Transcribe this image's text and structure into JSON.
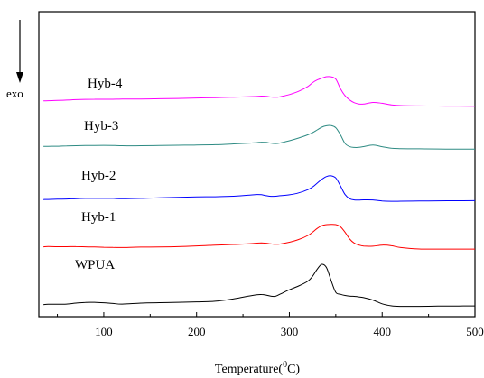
{
  "chart_data": {
    "type": "line",
    "title": "",
    "xlabel": "Temperature(",
    "xlabel_sup": "0",
    "xlabel_tail": "C)",
    "ylabel": "exo",
    "ylabel_arrow": "down",
    "xlim": [
      30,
      500
    ],
    "xticks": [
      100,
      200,
      300,
      400,
      500
    ],
    "yticks": [],
    "grid": false,
    "legend": "none",
    "series": [
      {
        "label": "WPUA",
        "color": "#000000",
        "x": [
          35,
          40,
          50,
          60,
          70,
          80,
          90,
          100,
          110,
          120,
          140,
          160,
          180,
          200,
          220,
          240,
          255,
          265,
          270,
          275,
          280,
          285,
          290,
          300,
          310,
          320,
          325,
          330,
          335,
          340,
          345,
          350,
          355,
          360,
          365,
          370,
          375,
          380,
          390,
          400,
          410,
          420,
          440,
          460,
          480,
          500
        ],
        "y": [
          0.345,
          0.337,
          0.338,
          0.335,
          0.317,
          0.303,
          0.302,
          0.31,
          0.324,
          0.335,
          0.317,
          0.308,
          0.301,
          0.294,
          0.282,
          0.238,
          0.19,
          0.162,
          0.158,
          0.168,
          0.188,
          0.19,
          0.152,
          0.07,
          0.0,
          -0.09,
          -0.18,
          -0.31,
          -0.4,
          -0.338,
          -0.1,
          0.118,
          0.154,
          0.175,
          0.187,
          0.192,
          0.201,
          0.215,
          0.26,
          0.33,
          0.367,
          0.377,
          0.376,
          0.372,
          0.37,
          0.368
        ]
      },
      {
        "label": "Hyb-1",
        "color": "#ff0000",
        "x": [
          35,
          40,
          50,
          60,
          70,
          80,
          90,
          100,
          110,
          120,
          140,
          160,
          180,
          200,
          220,
          240,
          255,
          265,
          270,
          275,
          280,
          285,
          290,
          300,
          310,
          320,
          325,
          330,
          335,
          340,
          345,
          350,
          355,
          360,
          365,
          370,
          375,
          380,
          390,
          400,
          410,
          420,
          440,
          460,
          480,
          500
        ],
        "y": [
          0.21,
          0.205,
          0.208,
          0.208,
          0.206,
          0.21,
          0.214,
          0.218,
          0.221,
          0.223,
          0.215,
          0.213,
          0.206,
          0.194,
          0.179,
          0.166,
          0.155,
          0.141,
          0.139,
          0.144,
          0.155,
          0.163,
          0.158,
          0.125,
          0.075,
          0.0,
          -0.06,
          -0.13,
          -0.18,
          -0.2,
          -0.205,
          -0.2,
          -0.16,
          -0.06,
          0.066,
          0.143,
          0.176,
          0.196,
          0.198,
          0.178,
          0.19,
          0.223,
          0.25,
          0.252,
          0.252,
          0.252
        ]
      },
      {
        "label": "Hyb-2",
        "color": "#0000ff",
        "x": [
          35,
          40,
          50,
          60,
          70,
          80,
          90,
          100,
          110,
          120,
          140,
          160,
          180,
          200,
          220,
          240,
          255,
          265,
          270,
          275,
          280,
          285,
          290,
          300,
          310,
          320,
          325,
          330,
          335,
          340,
          345,
          350,
          355,
          360,
          365,
          370,
          375,
          380,
          390,
          400,
          410,
          420,
          440,
          460,
          480,
          500
        ],
        "y": [
          0.103,
          0.101,
          0.097,
          0.093,
          0.086,
          0.081,
          0.081,
          0.082,
          0.082,
          0.088,
          0.082,
          0.071,
          0.061,
          0.054,
          0.051,
          0.041,
          0.024,
          0.01,
          0.014,
          0.032,
          0.043,
          0.041,
          0.032,
          0.015,
          -0.02,
          -0.08,
          -0.13,
          -0.2,
          -0.27,
          -0.322,
          -0.335,
          -0.295,
          -0.15,
          0.01,
          0.088,
          0.11,
          0.112,
          0.108,
          0.11,
          0.128,
          0.135,
          0.134,
          0.13,
          0.127,
          0.125,
          0.123
        ]
      },
      {
        "label": "Hyb-3",
        "color": "#2e8b83",
        "x": [
          35,
          40,
          50,
          60,
          70,
          80,
          90,
          100,
          110,
          120,
          140,
          160,
          180,
          200,
          220,
          240,
          255,
          265,
          270,
          275,
          280,
          285,
          290,
          300,
          310,
          320,
          325,
          330,
          335,
          340,
          345,
          350,
          355,
          360,
          365,
          370,
          375,
          380,
          390,
          400,
          410,
          420,
          440,
          460,
          480,
          500
        ],
        "y": [
          -0.046,
          -0.046,
          -0.049,
          -0.054,
          -0.058,
          -0.063,
          -0.064,
          -0.065,
          -0.064,
          -0.058,
          -0.058,
          -0.062,
          -0.066,
          -0.071,
          -0.077,
          -0.092,
          -0.105,
          -0.115,
          -0.123,
          -0.12,
          -0.106,
          -0.098,
          -0.108,
          -0.15,
          -0.2,
          -0.26,
          -0.3,
          -0.35,
          -0.4,
          -0.426,
          -0.43,
          -0.39,
          -0.26,
          -0.1,
          -0.04,
          -0.027,
          -0.028,
          -0.042,
          -0.07,
          -0.04,
          -0.012,
          -0.004,
          -0.001,
          0.002,
          0.003,
          0.004
        ]
      },
      {
        "label": "Hyb-4",
        "color": "#ff00ff",
        "x": [
          35,
          40,
          50,
          60,
          70,
          80,
          90,
          100,
          110,
          120,
          140,
          160,
          180,
          200,
          220,
          240,
          255,
          265,
          270,
          275,
          280,
          285,
          290,
          300,
          310,
          320,
          325,
          330,
          335,
          340,
          345,
          350,
          355,
          360,
          365,
          370,
          375,
          380,
          390,
          400,
          410,
          420,
          440,
          460,
          480,
          500
        ],
        "y": [
          -0.155,
          -0.156,
          -0.162,
          -0.168,
          -0.176,
          -0.182,
          -0.184,
          -0.184,
          -0.184,
          -0.188,
          -0.188,
          -0.193,
          -0.199,
          -0.206,
          -0.214,
          -0.222,
          -0.228,
          -0.235,
          -0.241,
          -0.236,
          -0.225,
          -0.22,
          -0.23,
          -0.27,
          -0.33,
          -0.42,
          -0.49,
          -0.54,
          -0.573,
          -0.6,
          -0.598,
          -0.555,
          -0.38,
          -0.25,
          -0.17,
          -0.12,
          -0.096,
          -0.095,
          -0.125,
          -0.11,
          -0.08,
          -0.067,
          -0.06,
          -0.058,
          -0.056,
          -0.055
        ]
      }
    ],
    "curve_labels": [
      {
        "text": "WPUA",
        "series": 0
      },
      {
        "text": "Hyb-1",
        "series": 1
      },
      {
        "text": "Hyb-2",
        "series": 2
      },
      {
        "text": "Hyb-3",
        "series": 3
      },
      {
        "text": "Hyb-4",
        "series": 4
      }
    ]
  }
}
